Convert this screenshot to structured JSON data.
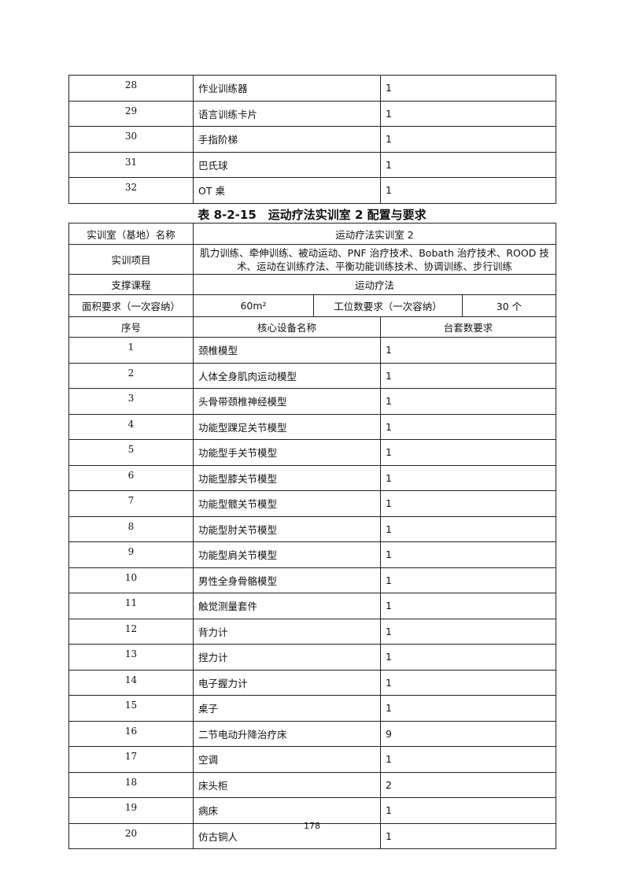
{
  "prev_table": {
    "rows": [
      {
        "no": "28",
        "name": "作业训练器",
        "qty": "1"
      },
      {
        "no": "29",
        "name": "语言训练卡片",
        "qty": "1"
      },
      {
        "no": "30",
        "name": "手指阶梯",
        "qty": "1"
      },
      {
        "no": "31",
        "name": "巴氏球",
        "qty": "1"
      },
      {
        "no": "32",
        "name": "OT 桌",
        "qty": "1"
      }
    ]
  },
  "caption": "表 8-2-15　运动疗法实训室 2 配置与要求",
  "table": {
    "room_label": "实训室（基地）名称",
    "room_value": "运动疗法实训室 2",
    "projects_label": "实训项目",
    "projects_value": "肌力训练、牵伸训练、被动运动、PNF 治疗技术、Bobath 治疗技术、ROOD 技术、运动在训练疗法、平衡功能训练技术、协调训练、步行训练",
    "course_label": "支撑课程",
    "course_value": "运动疗法",
    "area_label": "面积要求（一次容纳）",
    "area_value": "60m²",
    "stations_label": "工位数要求（一次容纳）",
    "stations_value": "30 个",
    "col_no": "序号",
    "col_name": "核心设备名称",
    "col_qty": "台套数要求",
    "rows": [
      {
        "no": "1",
        "name": "颈椎模型",
        "qty": "1"
      },
      {
        "no": "2",
        "name": "人体全身肌肉运动模型",
        "qty": "1"
      },
      {
        "no": "3",
        "name": "头骨带颈椎神经模型",
        "qty": "1"
      },
      {
        "no": "4",
        "name": "功能型踝足关节模型",
        "qty": "1"
      },
      {
        "no": "5",
        "name": "功能型手关节模型",
        "qty": "1"
      },
      {
        "no": "6",
        "name": "功能型膝关节模型",
        "qty": "1"
      },
      {
        "no": "7",
        "name": "功能型髋关节模型",
        "qty": "1"
      },
      {
        "no": "8",
        "name": "功能型肘关节模型",
        "qty": "1"
      },
      {
        "no": "9",
        "name": "功能型肩关节模型",
        "qty": "1"
      },
      {
        "no": "10",
        "name": "男性全身骨骼模型",
        "qty": "1"
      },
      {
        "no": "11",
        "name": "触觉测量套件",
        "qty": "1"
      },
      {
        "no": "12",
        "name": "背力计",
        "qty": "1"
      },
      {
        "no": "13",
        "name": "捏力计",
        "qty": "1"
      },
      {
        "no": "14",
        "name": "电子握力计",
        "qty": "1"
      },
      {
        "no": "15",
        "name": "桌子",
        "qty": "1"
      },
      {
        "no": "16",
        "name": "二节电动升降治疗床",
        "qty": "9"
      },
      {
        "no": "17",
        "name": "空调",
        "qty": "1"
      },
      {
        "no": "18",
        "name": "床头柜",
        "qty": "2"
      },
      {
        "no": "19",
        "name": "病床",
        "qty": "1"
      },
      {
        "no": "20",
        "name": "仿古铜人",
        "qty": "1"
      }
    ]
  },
  "page_number": "178"
}
